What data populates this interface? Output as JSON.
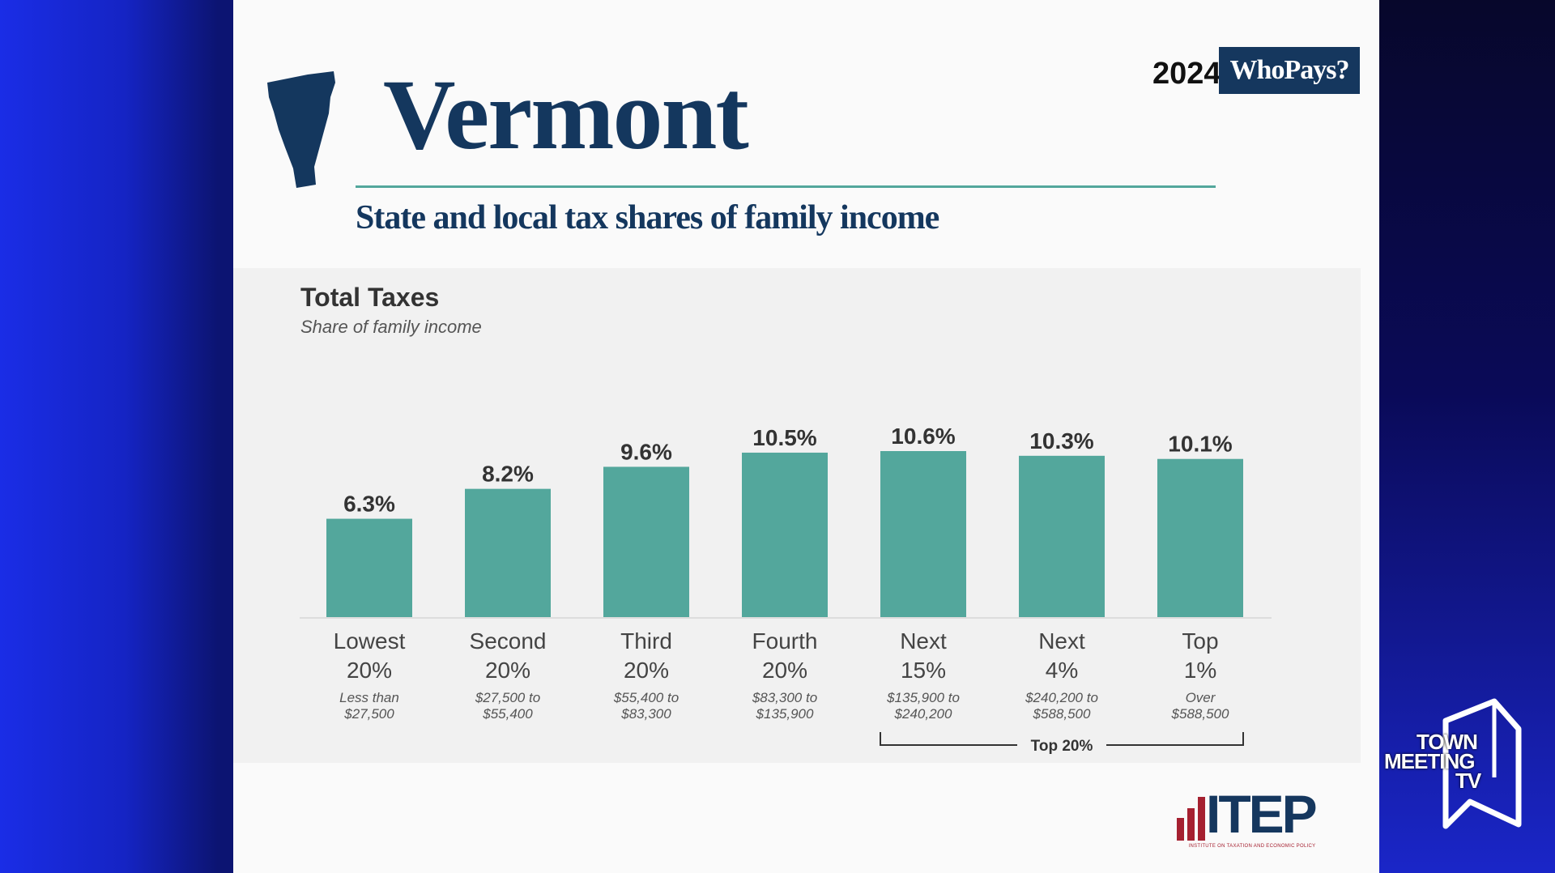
{
  "page": {
    "title": "Vermont",
    "subtitle": "State and local tax shares of family income",
    "badge_year": "2024",
    "badge_label": "WhoPays?",
    "logo_text": "ITEP",
    "logo_tagline": "INSTITUTE ON TAXATION AND ECONOMIC POLICY",
    "broadcaster_line1": "TOWN",
    "broadcaster_line2": "MEETING",
    "broadcaster_line3": "TV"
  },
  "colors": {
    "bar": "#53a79c",
    "title": "#14375e",
    "logo_bar_red": "#a52030"
  },
  "icons": {
    "state": "vermont-outline-icon",
    "logo_bars": "bar-chart-icon",
    "tmtv": "tmtv-logo-icon"
  },
  "chart_data": {
    "type": "bar",
    "title": "Total Taxes",
    "subtitle": "Share of family income",
    "categories": [
      "Lowest 20%",
      "Second 20%",
      "Third 20%",
      "Fourth 20%",
      "Next 15%",
      "Next 4%",
      "Top 1%"
    ],
    "category_lines": [
      [
        "Lowest",
        "20%"
      ],
      [
        "Second",
        "20%"
      ],
      [
        "Third",
        "20%"
      ],
      [
        "Fourth",
        "20%"
      ],
      [
        "Next",
        "15%"
      ],
      [
        "Next",
        "4%"
      ],
      [
        "Top",
        "1%"
      ]
    ],
    "income_ranges": [
      [
        "Less than",
        "$27,500"
      ],
      [
        "$27,500 to",
        "$55,400"
      ],
      [
        "$55,400 to",
        "$83,300"
      ],
      [
        "$83,300 to",
        "$135,900"
      ],
      [
        "$135,900 to",
        "$240,200"
      ],
      [
        "$240,200 to",
        "$588,500"
      ],
      [
        "Over",
        "$588,500"
      ]
    ],
    "values": [
      6.3,
      8.2,
      9.6,
      10.5,
      10.6,
      10.3,
      10.1
    ],
    "value_labels": [
      "6.3%",
      "8.2%",
      "9.6%",
      "10.5%",
      "10.6%",
      "10.3%",
      "10.1%"
    ],
    "ylim": [
      0,
      10.6
    ],
    "grid": false,
    "legend": "none",
    "group_bracket": {
      "label": "Top 20%",
      "from_category": 4,
      "to_category": 6
    }
  }
}
